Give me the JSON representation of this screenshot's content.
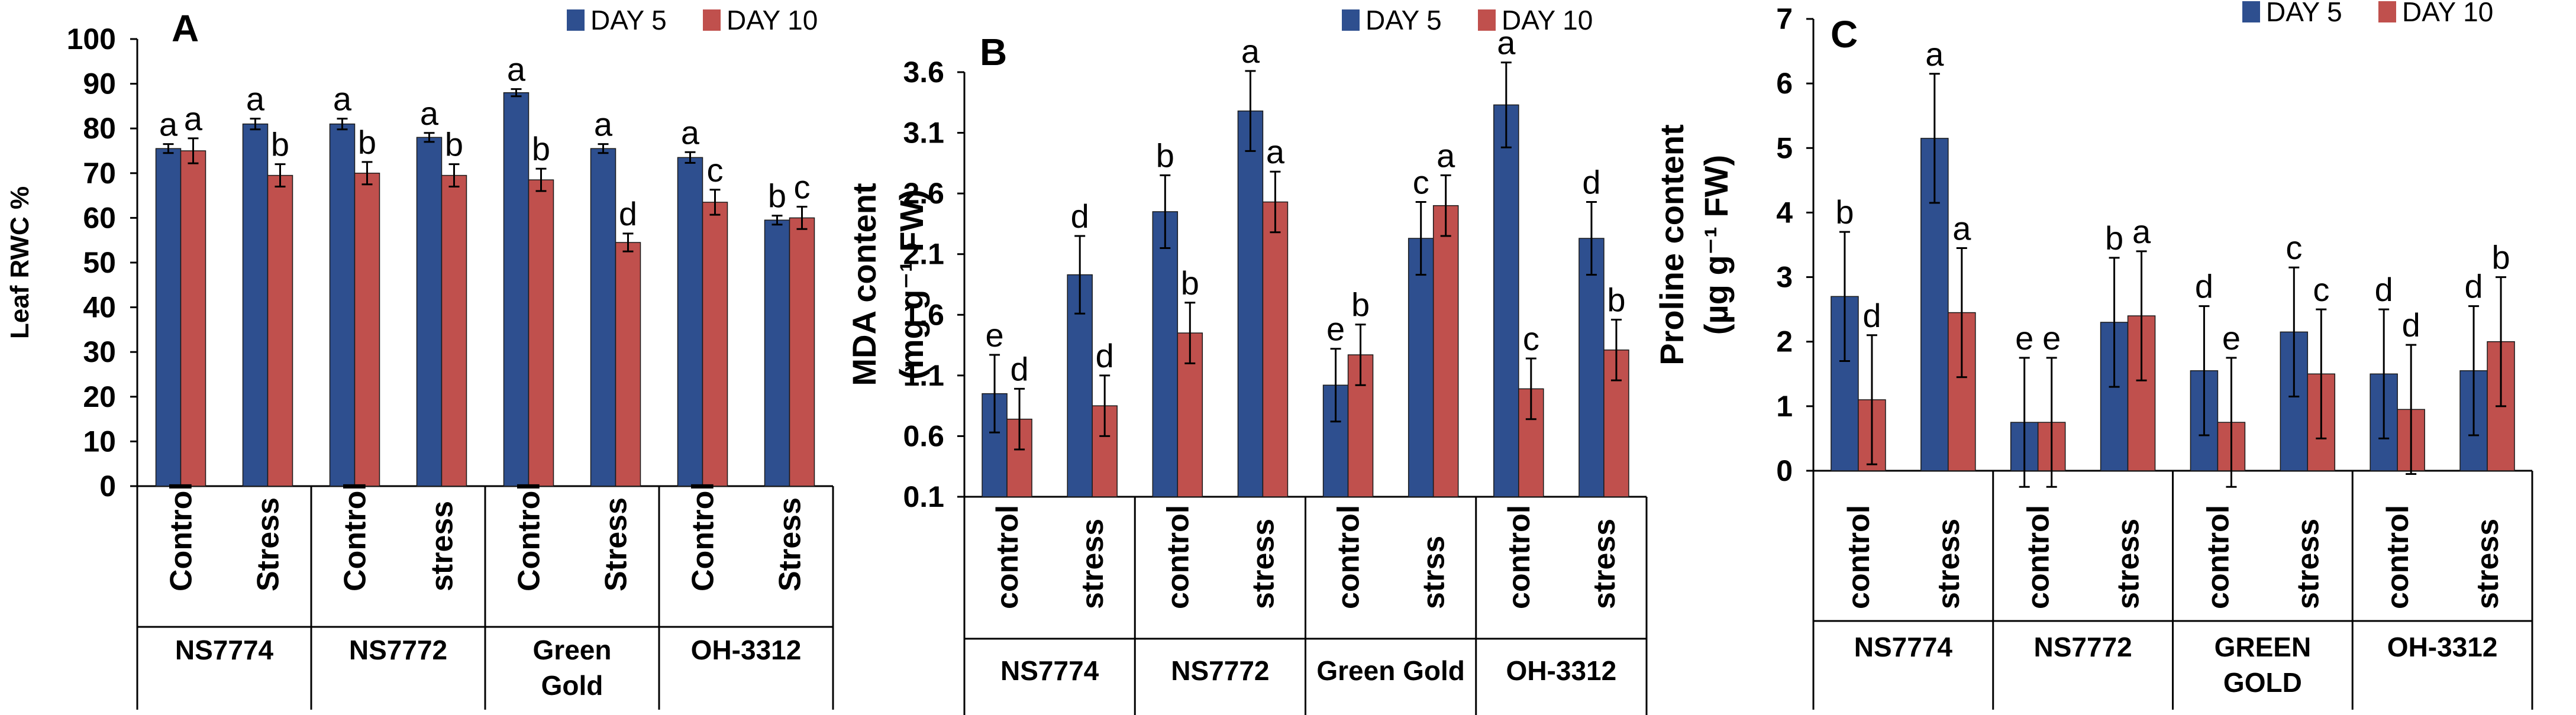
{
  "chart_data": [
    {
      "type": "bar",
      "panel_label": "A",
      "ylabel": "Leaf RWC %",
      "ylim": [
        0,
        100
      ],
      "yticks": [
        "0",
        "10",
        "20",
        "30",
        "40",
        "50",
        "60",
        "70",
        "80",
        "90",
        "100"
      ],
      "legend": {
        "placement": "top-right"
      },
      "categories": [
        "Control",
        "Stress",
        "Control",
        "stress",
        "Control",
        "Stress",
        "Control",
        "Stress"
      ],
      "groups": [
        {
          "lines": [
            "NS7774"
          ]
        },
        {
          "lines": [
            "NS7772"
          ]
        },
        {
          "lines": [
            "Green",
            "Gold"
          ]
        },
        {
          "lines": [
            "OH-3312"
          ]
        }
      ],
      "series": [
        {
          "name": "DAY 5",
          "color": "#2E4F8F",
          "values": [
            75.5,
            81,
            81,
            78,
            88,
            75.5,
            73.5,
            59.5
          ],
          "errors": [
            1,
            1.2,
            1.2,
            1,
            0.8,
            1,
            1.2,
            1
          ],
          "letters": [
            "a",
            "a",
            "a",
            "a",
            "a",
            "a",
            "a",
            "b"
          ]
        },
        {
          "name": "DAY 10",
          "color": "#C0504D",
          "values": [
            75,
            69.5,
            70,
            69.5,
            68.5,
            54.5,
            63.5,
            60
          ],
          "errors": [
            2.8,
            2.5,
            2.5,
            2.5,
            2.5,
            2,
            2.8,
            2.5
          ],
          "letters": [
            "a",
            "b",
            "b",
            "b",
            "b",
            "d",
            "c",
            "c"
          ]
        }
      ]
    },
    {
      "type": "bar",
      "panel_label": "B",
      "ylabel_line1": "MDA content",
      "ylabel_line2": "(mg g⁻¹ FW)",
      "ylim": [
        0.1,
        3.6
      ],
      "yticks": [
        "0.1",
        "0.6",
        "1.1",
        "1.6",
        "2.1",
        "2.6",
        "3.1",
        "3.6"
      ],
      "legend": {
        "placement": "top-right"
      },
      "categories": [
        "control",
        "stress",
        "control",
        "stress",
        "control",
        "strss",
        "control",
        "stress"
      ],
      "groups": [
        {
          "lines": [
            "NS7774"
          ]
        },
        {
          "lines": [
            "NS7772"
          ]
        },
        {
          "lines": [
            "Green Gold"
          ]
        },
        {
          "lines": [
            "OH-3312"
          ]
        }
      ],
      "series": [
        {
          "name": "DAY 5",
          "color": "#2E4F8F",
          "values": [
            0.95,
            1.93,
            2.45,
            3.28,
            1.02,
            2.23,
            3.33,
            2.23
          ],
          "errors": [
            0.32,
            0.32,
            0.3,
            0.33,
            0.3,
            0.3,
            0.35,
            0.3
          ],
          "letters": [
            "e",
            "d",
            "b",
            "a",
            "e",
            "c",
            "a",
            "d"
          ]
        },
        {
          "name": "DAY 10",
          "color": "#C0504D",
          "values": [
            0.74,
            0.85,
            1.45,
            2.53,
            1.27,
            2.5,
            0.99,
            1.31
          ],
          "errors": [
            0.25,
            0.25,
            0.25,
            0.25,
            0.25,
            0.25,
            0.25,
            0.25
          ],
          "letters": [
            "d",
            "d",
            "b",
            "a",
            "b",
            "a",
            "c",
            "b"
          ]
        }
      ]
    },
    {
      "type": "bar",
      "panel_label": "C",
      "ylabel_line1": "Proline content",
      "ylabel_line2": "(µg g⁻¹ FW)",
      "ylim": [
        0,
        7
      ],
      "yticks": [
        "0",
        "1",
        "2",
        "3",
        "4",
        "5",
        "6",
        "7"
      ],
      "legend": {
        "placement": "top-right"
      },
      "categories": [
        "control",
        "stress",
        "control",
        "stress",
        "control",
        "stress",
        "control",
        "stress"
      ],
      "groups": [
        {
          "lines": [
            "NS7774"
          ]
        },
        {
          "lines": [
            "NS7772"
          ]
        },
        {
          "lines": [
            "GREEN",
            "GOLD"
          ]
        },
        {
          "lines": [
            "OH-3312"
          ]
        }
      ],
      "series": [
        {
          "name": "DAY 5",
          "color": "#2E4F8F",
          "values": [
            2.7,
            5.15,
            0.75,
            2.3,
            1.55,
            2.15,
            1.5,
            1.55
          ],
          "errors": [
            1,
            1,
            1,
            1,
            1,
            1,
            1,
            1
          ],
          "letters": [
            "b",
            "a",
            "e",
            "b",
            "d",
            "c",
            "d",
            "d"
          ]
        },
        {
          "name": "DAY 10",
          "color": "#C0504D",
          "values": [
            1.1,
            2.45,
            0.75,
            2.4,
            0.75,
            1.5,
            0.95,
            2
          ],
          "errors": [
            1,
            1,
            1,
            1,
            1,
            1,
            1,
            1
          ],
          "letters": [
            "d",
            "a",
            "e",
            "a",
            "e",
            "c",
            "d",
            "b"
          ]
        }
      ]
    }
  ]
}
